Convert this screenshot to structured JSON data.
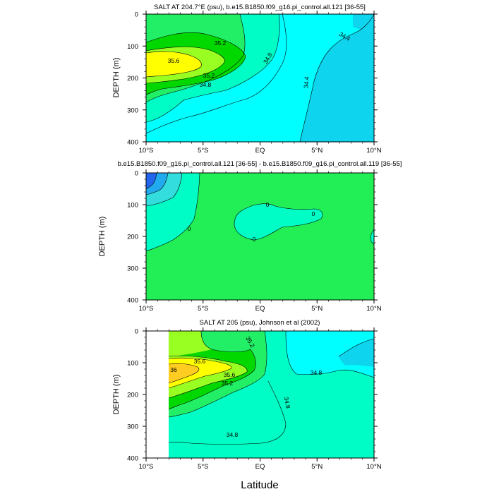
{
  "chart_data": [
    {
      "type": "contour",
      "title": "SALT AT 204.7°E (psu), b.e15.B1850.f09_g16.pi_control.all.121 [36-55]",
      "ylabel": "DEPTH (m)",
      "xticks": [
        "10°S",
        "5°S",
        "EQ",
        "5°N",
        "10°N"
      ],
      "yticks": [
        "0",
        "100",
        "200",
        "300",
        "400"
      ],
      "xlim": [
        -10,
        10
      ],
      "ylim": [
        400,
        0
      ],
      "contour_labels": [
        "35.2",
        "35.6",
        "35.2",
        "34.8",
        "34.8",
        "34.4",
        "34.4"
      ]
    },
    {
      "type": "contour",
      "title": "b.e15.B1850.f09_g16.pi_control.all.121 [36-55] - b.e15.B1850.f09_g16.pi_control.all.119 [36-55]",
      "ylabel": "DEPTH (m)",
      "xticks": [
        "10°S",
        "5°S",
        "EQ",
        "5°N",
        "10°N"
      ],
      "yticks": [
        "0",
        "100",
        "200",
        "300",
        "400"
      ],
      "xlim": [
        -10,
        10
      ],
      "ylim": [
        400,
        0
      ],
      "contour_labels": [
        "0",
        "0",
        "0",
        "0"
      ]
    },
    {
      "type": "contour",
      "title": "SALT AT 205 (psu), Johnson et al (2002)",
      "ylabel": "DEPTH (m)",
      "xticks": [
        "10°S",
        "5°S",
        "EQ",
        "5°N",
        "10°N"
      ],
      "yticks": [
        "0",
        "100",
        "200",
        "300",
        "400"
      ],
      "xlim": [
        -10,
        10
      ],
      "ylim": [
        400,
        0
      ],
      "contour_labels": [
        "35.2",
        "35.6",
        "36",
        "35.6",
        "35.2",
        "34.8",
        "34.8",
        "34.8"
      ]
    }
  ],
  "xlabel": "Latitude",
  "colors": {
    "c1": "#0ed4ee",
    "c2": "#00ffff",
    "c3": "#00fdc5",
    "c4": "#22ee66",
    "c5": "#00d800",
    "c6": "#99ff22",
    "c7": "#ffff00",
    "c8": "#ffcc22",
    "diff_bg": "#22ee55",
    "diff_neg1": "#33dddd",
    "diff_neg2": "#22aaee",
    "diff_neg3": "#2266ee"
  }
}
